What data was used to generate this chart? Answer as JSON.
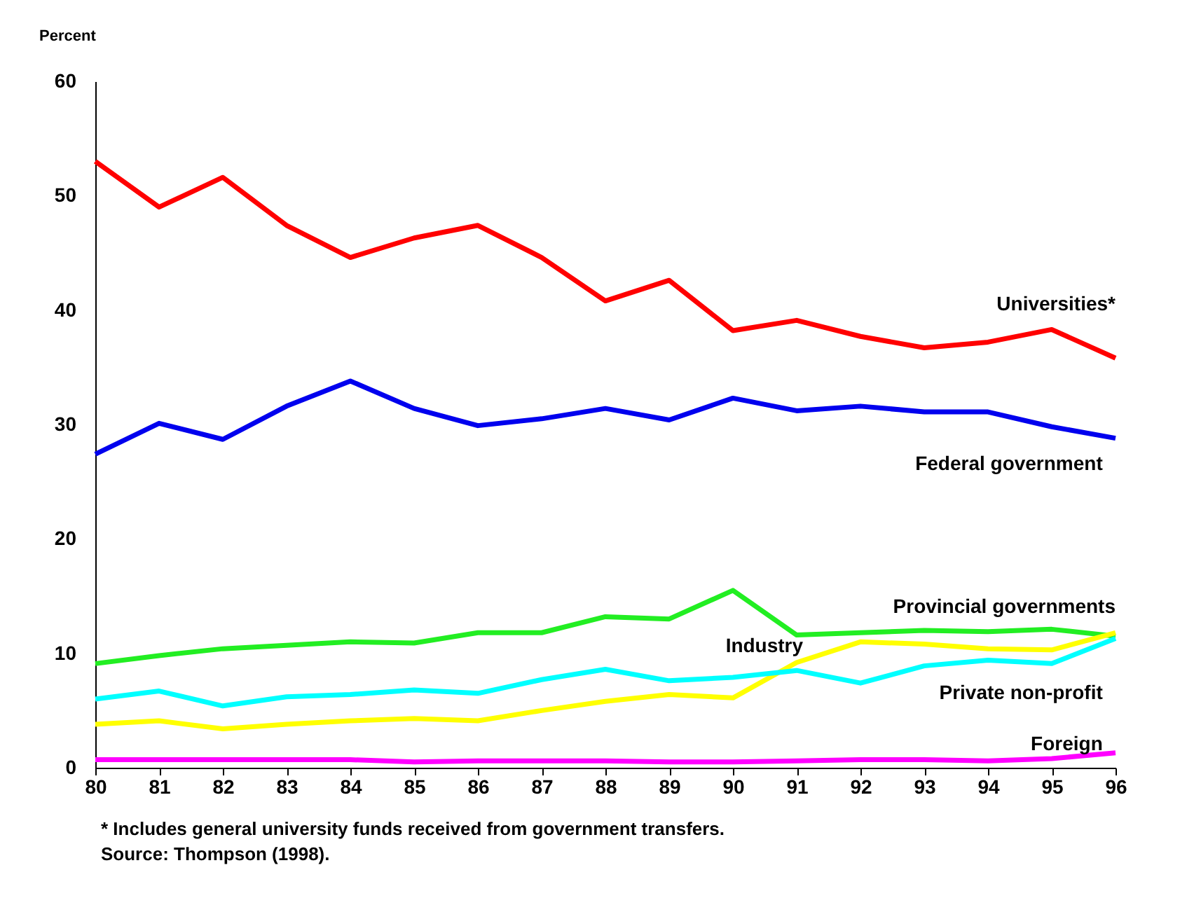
{
  "chart_data": {
    "type": "line",
    "ylabel": "Percent",
    "x": [
      80,
      81,
      82,
      83,
      84,
      85,
      86,
      87,
      88,
      89,
      90,
      91,
      92,
      93,
      94,
      95,
      96
    ],
    "xlim": [
      80,
      96
    ],
    "xticks": [
      80,
      81,
      82,
      83,
      84,
      85,
      86,
      87,
      88,
      89,
      90,
      91,
      92,
      93,
      94,
      95,
      96
    ],
    "ylim": [
      0,
      60
    ],
    "yticks": [
      0,
      10,
      20,
      30,
      40,
      50,
      60
    ],
    "grid": false,
    "legend": false,
    "marker": "none",
    "line_style": "solid",
    "series": [
      {
        "name": "Universities*",
        "color": "#ff0000",
        "values": [
          53.0,
          49.0,
          51.6,
          47.4,
          44.6,
          46.3,
          47.4,
          44.6,
          40.8,
          42.6,
          38.2,
          39.1,
          37.7,
          36.7,
          37.2,
          38.3,
          35.8
        ]
      },
      {
        "name": "Federal government",
        "color": "#0000ee",
        "values": [
          27.4,
          30.1,
          28.7,
          31.6,
          33.8,
          31.4,
          29.9,
          30.5,
          31.4,
          30.4,
          32.3,
          31.2,
          31.6,
          31.1,
          31.1,
          29.8,
          28.8
        ]
      },
      {
        "name": "Provincial governments",
        "color": "#22ee22",
        "values": [
          9.1,
          9.8,
          10.4,
          10.7,
          11.0,
          10.9,
          11.8,
          11.8,
          13.2,
          13.0,
          15.5,
          11.6,
          11.8,
          12.0,
          11.9,
          12.1,
          11.5
        ]
      },
      {
        "name": "Industry",
        "color": "#ffff00",
        "values": [
          3.8,
          4.1,
          3.4,
          3.8,
          4.1,
          4.3,
          4.1,
          5.0,
          5.8,
          6.4,
          6.1,
          9.2,
          11.0,
          10.8,
          10.4,
          10.3,
          11.8
        ]
      },
      {
        "name": "Private non-profit",
        "color": "#00ffff",
        "values": [
          6.0,
          6.7,
          5.4,
          6.2,
          6.4,
          6.8,
          6.5,
          7.7,
          8.6,
          7.6,
          7.9,
          8.5,
          7.4,
          8.9,
          9.4,
          9.1,
          11.3
        ]
      },
      {
        "name": "Foreign",
        "color": "#ff00ff",
        "values": [
          0.7,
          0.7,
          0.7,
          0.7,
          0.7,
          0.5,
          0.6,
          0.6,
          0.6,
          0.5,
          0.5,
          0.6,
          0.7,
          0.7,
          0.6,
          0.8,
          1.3
        ]
      }
    ],
    "annotations": [
      "* Includes general university funds received from government transfers.",
      "Source:  Thompson (1998)."
    ]
  }
}
